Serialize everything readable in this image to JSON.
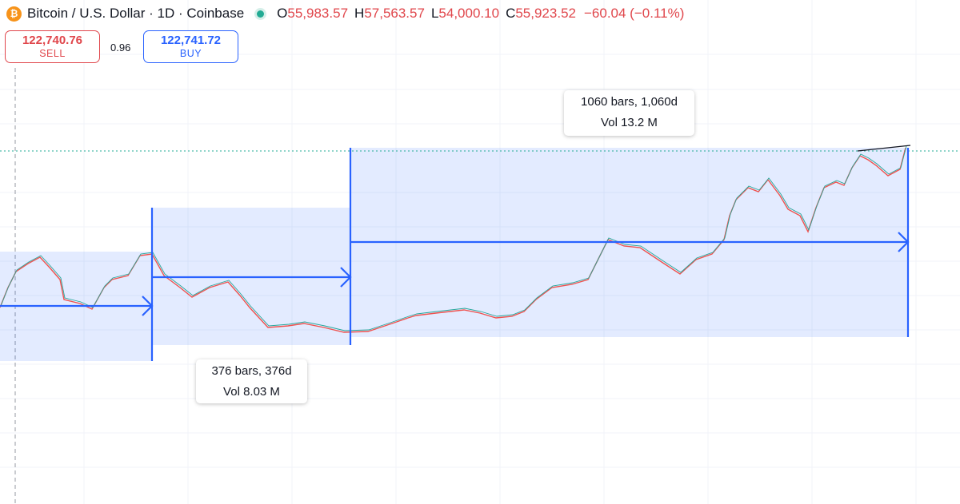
{
  "header": {
    "symbol": "Bitcoin / U.S. Dollar · 1D · Coinbase",
    "ohlc": [
      {
        "key": "O",
        "value": "55,983.57"
      },
      {
        "key": "H",
        "value": "57,563.57"
      },
      {
        "key": "L",
        "value": "54,000.10"
      },
      {
        "key": "C",
        "value": "55,923.52"
      }
    ],
    "change": "−60.04 (−0.11%)"
  },
  "trade": {
    "sell": {
      "price": "122,740.76",
      "label": "SELL"
    },
    "spread": "0.96",
    "buy": {
      "price": "122,741.72",
      "label": "BUY"
    }
  },
  "measurements": [
    {
      "bars": "376 bars, 376d",
      "volume": "Vol 8.03 M"
    },
    {
      "bars": "1060 bars, 1,060d",
      "volume": "Vol 13.2 M"
    }
  ]
}
